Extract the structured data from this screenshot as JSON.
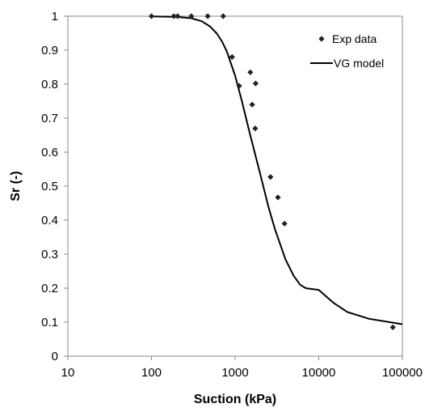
{
  "chart_data": {
    "type": "scatter",
    "title": "",
    "xlabel": "Suction (kPa)",
    "ylabel": "Sr (-)",
    "x_scale": "log",
    "xlim": [
      10,
      100000
    ],
    "ylim": [
      0,
      1
    ],
    "x_ticks": [
      "10",
      "100",
      "1000",
      "10000",
      "100000"
    ],
    "y_ticks": [
      "0",
      "0.1",
      "0.2",
      "0.3",
      "0.4",
      "0.5",
      "0.6",
      "0.7",
      "0.8",
      "0.9",
      "1"
    ],
    "grid": false,
    "legend_position": "top-right",
    "series": [
      {
        "name": "Exp data",
        "kind": "scatter",
        "marker": "diamond",
        "color": "#222222",
        "points": [
          [
            100,
            1.0
          ],
          [
            185,
            1.0
          ],
          [
            205,
            1.0
          ],
          [
            300,
            1.0
          ],
          [
            470,
            1.0
          ],
          [
            720,
            1.0
          ],
          [
            920,
            0.88
          ],
          [
            1120,
            0.795
          ],
          [
            1520,
            0.835
          ],
          [
            1600,
            0.74
          ],
          [
            1760,
            0.802
          ],
          [
            1740,
            0.67
          ],
          [
            2650,
            0.527
          ],
          [
            3250,
            0.467
          ],
          [
            3900,
            0.39
          ],
          [
            77000,
            0.085
          ]
        ]
      },
      {
        "name": "VG model",
        "kind": "line",
        "color": "#000000",
        "points": [
          [
            100,
            0.9995
          ],
          [
            200,
            0.998
          ],
          [
            300,
            0.994
          ],
          [
            400,
            0.985
          ],
          [
            500,
            0.97
          ],
          [
            600,
            0.95
          ],
          [
            700,
            0.925
          ],
          [
            800,
            0.895
          ],
          [
            1000,
            0.825
          ],
          [
            1200,
            0.752
          ],
          [
            1500,
            0.655
          ],
          [
            2000,
            0.535
          ],
          [
            2500,
            0.44
          ],
          [
            3000,
            0.373
          ],
          [
            4000,
            0.285
          ],
          [
            5000,
            0.237
          ],
          [
            6000,
            0.21
          ],
          [
            7000,
            0.2
          ],
          [
            10000,
            0.195
          ],
          [
            15000,
            0.157
          ],
          [
            22000,
            0.13
          ],
          [
            40000,
            0.11
          ],
          [
            100000,
            0.094
          ]
        ]
      }
    ]
  }
}
